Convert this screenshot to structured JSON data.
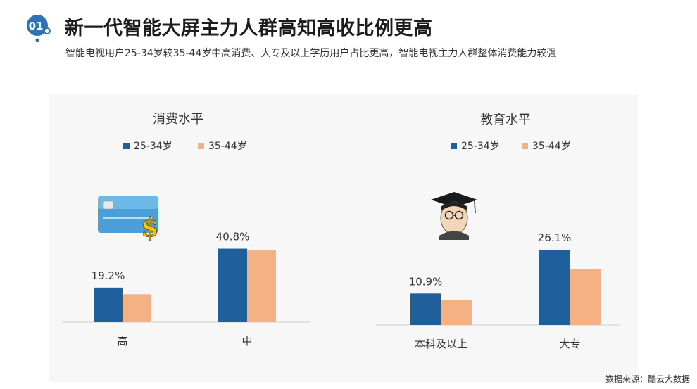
{
  "header": {
    "badge": "01",
    "title": "新一代智能大屏主力人群高知高收比例更高",
    "subtitle": "智能电视用户25-34岁较35-44岁中高消费、大专及以上学历用户占比更高，智能电视主力人群整体消费能力较强"
  },
  "colors": {
    "series1": "#1f5f9c",
    "series2": "#f4b183",
    "accent": "#2e74b5"
  },
  "chart_data": [
    {
      "type": "bar",
      "title": "消费水平",
      "categories": [
        "高",
        "中"
      ],
      "series": [
        {
          "name": "25-34岁",
          "values": [
            19.2,
            40.8
          ]
        },
        {
          "name": "35-44岁",
          "values": [
            15.5,
            40.0
          ]
        }
      ],
      "data_labels": [
        "19.2%",
        "40.8%"
      ],
      "ylim": [
        0,
        50
      ],
      "legend": "top",
      "grid": false,
      "icon": "credit-card-dollar-icon"
    },
    {
      "type": "bar",
      "title": "教育水平",
      "categories": [
        "本科及以上",
        "大专"
      ],
      "series": [
        {
          "name": "25-34岁",
          "values": [
            10.9,
            26.1
          ]
        },
        {
          "name": "35-44岁",
          "values": [
            8.7,
            19.4
          ]
        }
      ],
      "data_labels": [
        "10.9%",
        "26.1%"
      ],
      "ylim": [
        0,
        32
      ],
      "legend": "top",
      "grid": false,
      "icon": "graduate-icon"
    }
  ],
  "footer": {
    "source": "数据来源：酷云大数据"
  }
}
